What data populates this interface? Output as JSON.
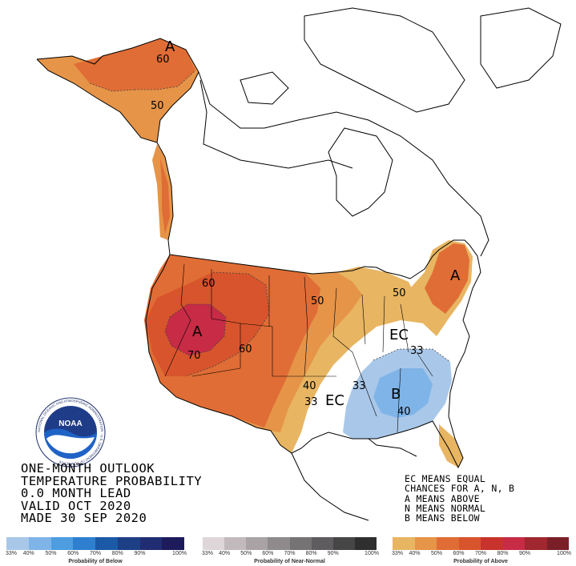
{
  "title_lines": [
    "ONE-MONTH OUTLOOK",
    "TEMPERATURE PROBABILITY",
    "0.0 MONTH LEAD",
    "VALID OCT 2020",
    "MADE 30 SEP 2020"
  ],
  "legend_notes": [
    "EC MEANS EQUAL",
    "CHANCES FOR A, N, B",
    "A MEANS ABOVE",
    "N MEANS NORMAL",
    "B MEANS BELOW"
  ],
  "map_labels": {
    "alaska_a": "A",
    "alaska_60": "60",
    "alaska_50": "50",
    "west_a": "A",
    "west_60a": "60",
    "west_70": "70",
    "west_60b": "60",
    "plains_50": "50",
    "ne_50": "50",
    "ne_a": "A",
    "ec_east": "EC",
    "ec_south": "EC",
    "s_40": "40",
    "s_33a": "33",
    "s_33b": "33",
    "se_33": "33",
    "se_b": "B",
    "se_40": "40"
  },
  "colorbars": {
    "below": {
      "colors": [
        "#a9c8e9",
        "#7fb4e8",
        "#4d9de0",
        "#2f7fd0",
        "#1b5aa6",
        "#1d3f86",
        "#212d72",
        "#1d1b5c"
      ],
      "ticks": [
        "33%",
        "40%",
        "50%",
        "60%",
        "70%",
        "80%",
        "90%",
        "100%"
      ],
      "label": "Probability of Below"
    },
    "near_normal": {
      "colors": [
        "#ded6d9",
        "#c2b9bd",
        "#a9a3a6",
        "#8f8b8d",
        "#767375",
        "#5e5c5e",
        "#474647",
        "#2f2f2f"
      ],
      "ticks": [
        "33%",
        "40%",
        "50%",
        "60%",
        "70%",
        "80%",
        "90%",
        "100%"
      ],
      "label": "Probability of Near-Normal"
    },
    "above": {
      "colors": [
        "#e8b562",
        "#e69448",
        "#e06d35",
        "#d8542c",
        "#c9332d",
        "#c72b46",
        "#a0272f",
        "#7a1f28"
      ],
      "ticks": [
        "33%",
        "40%",
        "50%",
        "60%",
        "70%",
        "80%",
        "90%",
        "100%"
      ],
      "label": "Probability of Above"
    }
  },
  "logo": {
    "text": "NOAA",
    "ring_text": "NATIONAL OCEANIC AND ATMOSPHERIC ADMINISTRATION · U.S. DEPARTMENT OF COMMERCE"
  }
}
